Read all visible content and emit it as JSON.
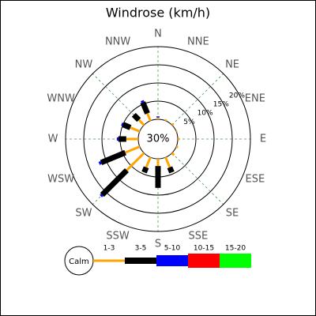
{
  "chart_data": {
    "type": "windrose",
    "title": "Windrose (km/h)",
    "directions": [
      "N",
      "NNE",
      "NE",
      "ENE",
      "E",
      "ESE",
      "SE",
      "SSE",
      "S",
      "SSW",
      "SW",
      "WSW",
      "W",
      "WNW",
      "NW",
      "NNW"
    ],
    "calm": {
      "value": 30,
      "label": "30%"
    },
    "calm_label": "Calm",
    "rlim": [
      0,
      20
    ],
    "rticks": [
      {
        "value": 5,
        "label": "5%"
      },
      {
        "value": 10,
        "label": "10%"
      },
      {
        "value": 15,
        "label": "15%"
      },
      {
        "value": 20,
        "label": "20%"
      }
    ],
    "series": [
      {
        "name": "1-3",
        "color": "#ffa500",
        "values": [
          0.5,
          0.4,
          0.5,
          0.3,
          0.5,
          0.5,
          0.8,
          3,
          2,
          3,
          6.7,
          4.3,
          3.3,
          2.8,
          2,
          2.2
        ]
      },
      {
        "name": "3-5",
        "color": "#000000",
        "values": [
          0,
          0,
          0,
          0,
          0,
          0,
          0,
          1.5,
          6,
          1.5,
          9.6,
          7.2,
          2.2,
          2.2,
          2,
          3.3
        ]
      },
      {
        "name": "5-10",
        "color": "#0000ff",
        "values": [
          0.3,
          0,
          0,
          0,
          0,
          0,
          0,
          0,
          0,
          0,
          0.5,
          0.6,
          0.4,
          0.4,
          0,
          0.5
        ]
      },
      {
        "name": "10-15",
        "color": "#ff0000",
        "values": [
          0,
          0,
          0,
          0,
          0,
          0,
          0,
          0,
          0,
          0,
          0,
          0,
          0,
          0,
          0,
          0
        ]
      },
      {
        "name": "15-20",
        "color": "#00ff00",
        "values": [
          0,
          0,
          0,
          0,
          0,
          0,
          0,
          0,
          0,
          0,
          0,
          0,
          0,
          0,
          0,
          0
        ]
      }
    ]
  }
}
